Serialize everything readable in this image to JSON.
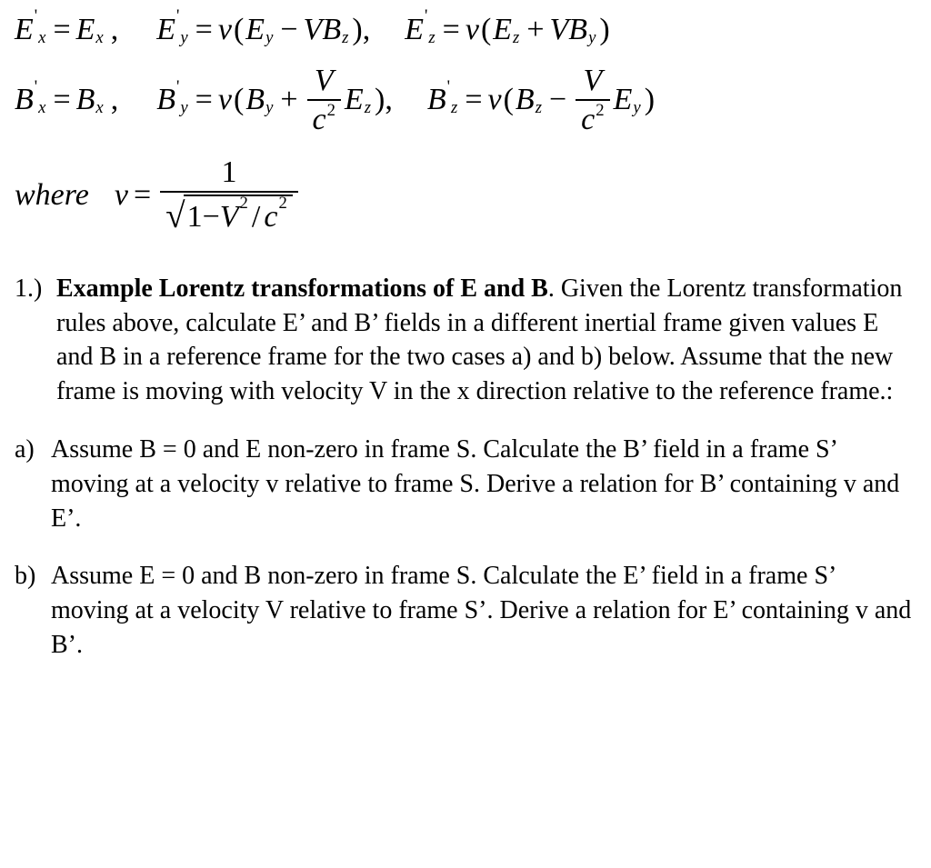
{
  "colors": {
    "text": "#000000",
    "background": "#ffffff"
  },
  "typography": {
    "family": "Times New Roman",
    "body_size_pt": 21,
    "equation_size_pt": 26
  },
  "equations": {
    "E_row": {
      "Ex": {
        "lhs_var": "E",
        "lhs_sub": "x",
        "rhs_var": "E",
        "rhs_sub": "x"
      },
      "Ey": {
        "lhs_var": "E",
        "lhs_sub": "y",
        "coeff": "v",
        "termA_var": "E",
        "termA_sub": "y",
        "op": "−",
        "termB_coeff": "V",
        "termB_var": "B",
        "termB_sub": "z"
      },
      "Ez": {
        "lhs_var": "E",
        "lhs_sub": "z",
        "coeff": "v",
        "termA_var": "E",
        "termA_sub": "z",
        "op": "+",
        "termB_coeff": "V",
        "termB_var": "B",
        "termB_sub": "y"
      }
    },
    "B_row": {
      "Bx": {
        "lhs_var": "B",
        "lhs_sub": "x",
        "rhs_var": "B",
        "rhs_sub": "x"
      },
      "By": {
        "lhs_var": "B",
        "lhs_sub": "y",
        "coeff": "v",
        "termA_var": "B",
        "termA_sub": "y",
        "op": "+",
        "frac_num": "V",
        "frac_den_base": "c",
        "frac_den_exp": "2",
        "termB_var": "E",
        "termB_sub": "z"
      },
      "Bz": {
        "lhs_var": "B",
        "lhs_sub": "z",
        "coeff": "v",
        "termA_var": "B",
        "termA_sub": "z",
        "op": "−",
        "frac_num": "V",
        "frac_den_base": "c",
        "frac_den_exp": "2",
        "termB_var": "E",
        "termB_sub": "y"
      }
    },
    "where": {
      "label": "where",
      "lhs": "v",
      "num": "1",
      "rad_one": "1",
      "rad_minus": "−",
      "rad_V": "V",
      "rad_Vexp": "2",
      "rad_slash": "/",
      "rad_c": "c",
      "rad_cexp": "2"
    }
  },
  "problem": {
    "number": "1.)",
    "title": "Example Lorentz transformations of E and B",
    "body": ". Given the Lorentz transformation rules above, calculate E’ and B’ fields in a different inertial frame given values E and B in a reference frame for the two cases a) and b) below. Assume that the new frame is moving with velocity V in the x direction relative to the reference frame.:"
  },
  "parts": {
    "a": {
      "label": "a)",
      "text": "Assume B = 0 and E non-zero in frame S.  Calculate the B’ field in a frame S’ moving at a velocity v relative to frame S.  Derive a relation for B’ containing v and E’."
    },
    "b": {
      "label": "b)",
      "text": "Assume E = 0  and B non-zero in frame S.  Calculate the E’ field in a frame S’ moving at a velocity V relative to frame S’. Derive a relation for E’ containing v and B’."
    }
  }
}
